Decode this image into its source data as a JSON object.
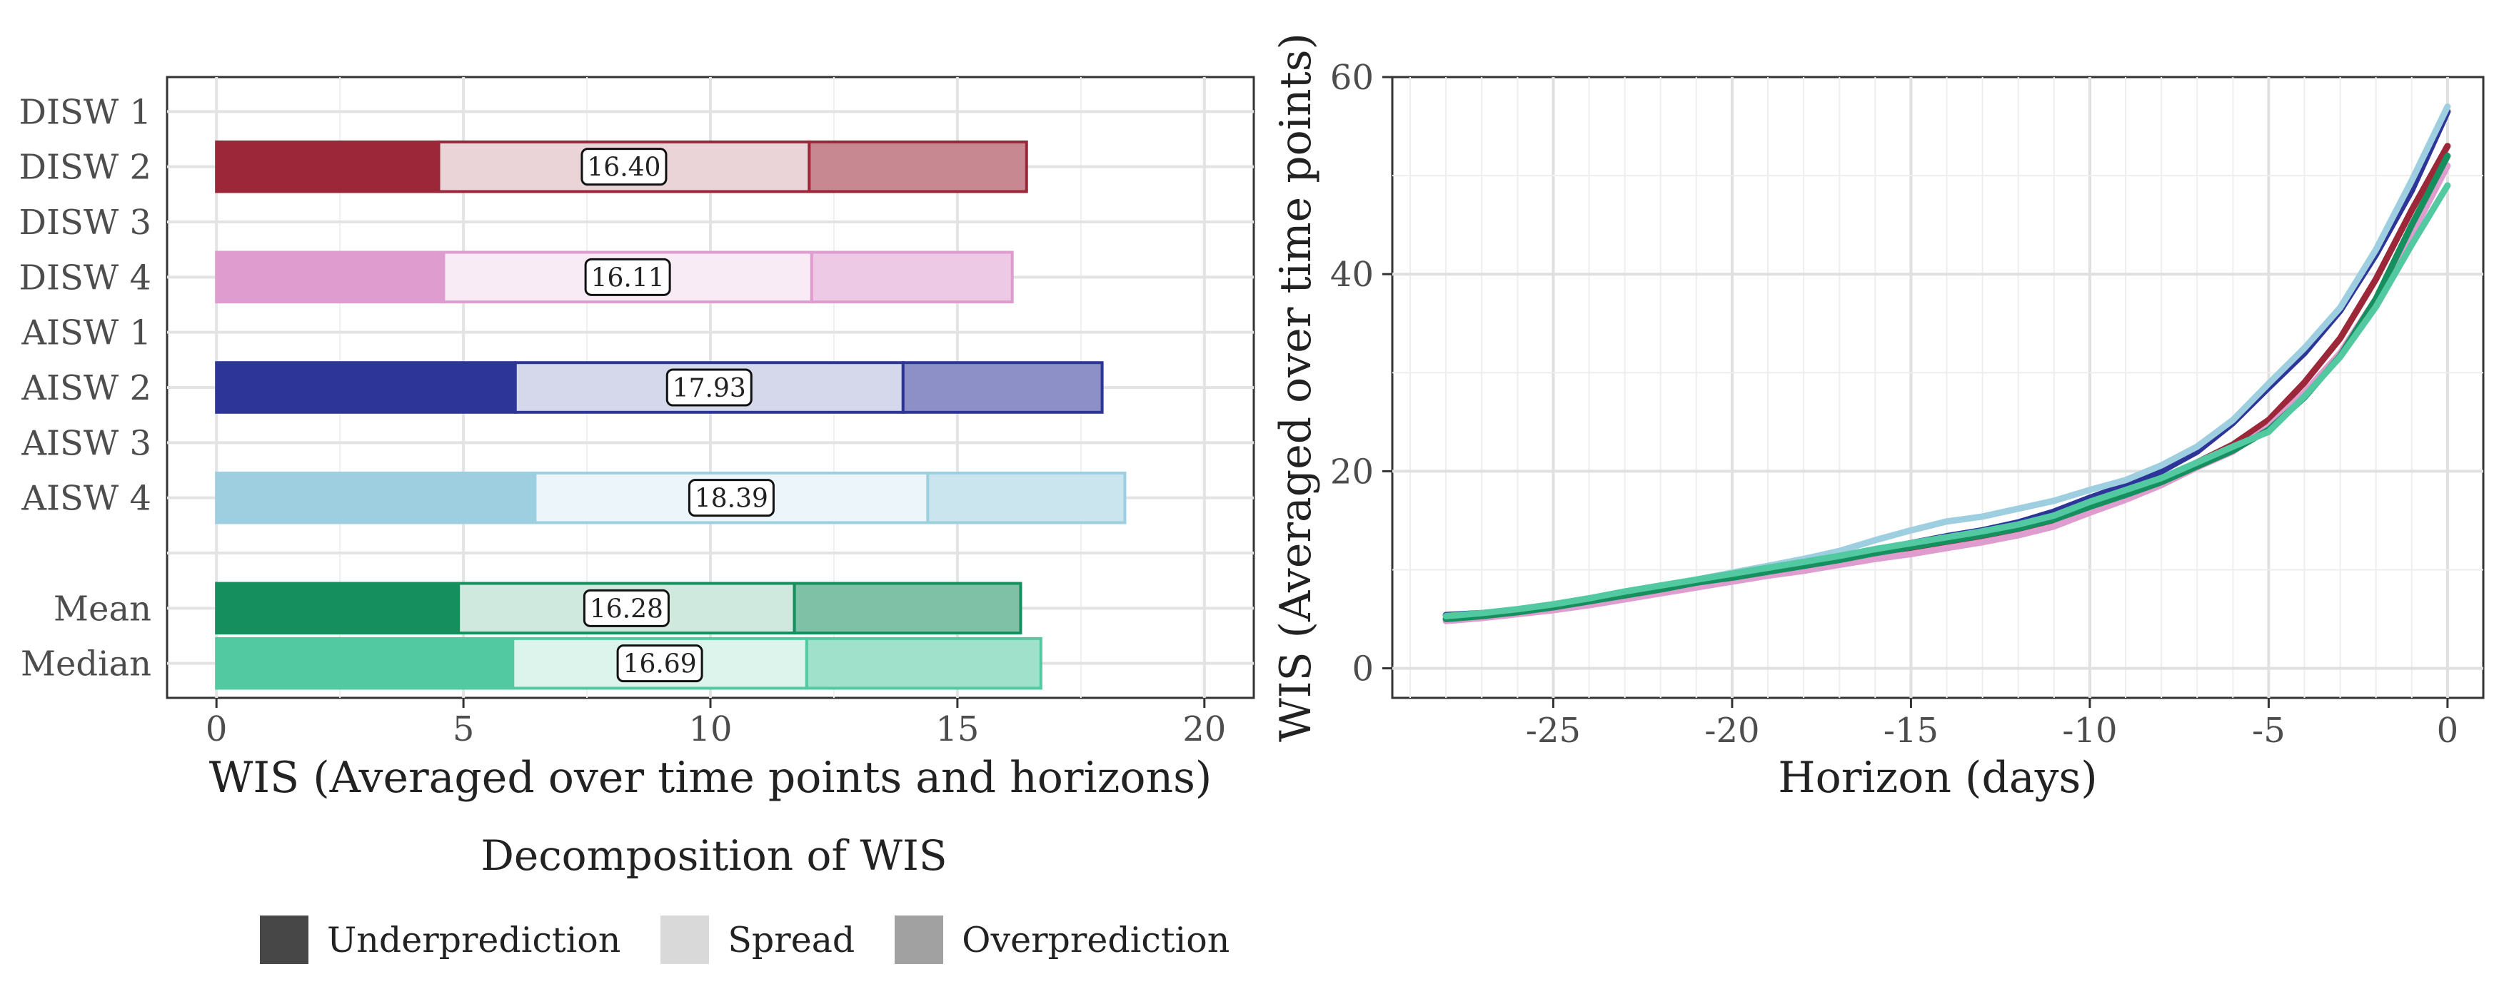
{
  "chart_data": [
    {
      "type": "bar",
      "orientation": "horizontal",
      "stacked": true,
      "xlabel": "WIS (Averaged over time points and horizons)",
      "ylabel": "",
      "xlim": [
        -1,
        21
      ],
      "xticks": [
        0,
        5,
        10,
        15,
        20
      ],
      "grid": true,
      "categories": [
        "DISW 1",
        "DISW 2",
        "DISW 3",
        "DISW 4",
        "AISW 1",
        "AISW 2",
        "AISW 3",
        "AISW 4",
        "",
        "Mean",
        "Median"
      ],
      "series": [
        {
          "name": "Underprediction",
          "values": [
            null,
            4.5,
            null,
            4.6,
            null,
            6.05,
            null,
            6.45,
            null,
            4.9,
            6.0
          ]
        },
        {
          "name": "Spread",
          "values": [
            null,
            7.5,
            null,
            7.45,
            null,
            7.85,
            null,
            7.95,
            null,
            6.8,
            5.95
          ]
        },
        {
          "name": "Overprediction",
          "values": [
            null,
            4.4,
            null,
            4.06,
            null,
            4.03,
            null,
            3.99,
            null,
            4.58,
            4.74
          ]
        }
      ],
      "totals": [
        null,
        16.4,
        null,
        16.11,
        null,
        17.93,
        null,
        18.39,
        null,
        16.28,
        16.69
      ],
      "total_labels": [
        "",
        "16.40",
        "",
        "16.11",
        "",
        "17.93",
        "",
        "18.39",
        "",
        "16.28",
        "16.69"
      ],
      "bar_colors": [
        "",
        "#9b2738",
        "",
        "#de9ccf",
        "",
        "#2d3599",
        "",
        "#9ecfe0",
        "",
        "#168f5e",
        "#52c9a1"
      ],
      "legend": {
        "title": "Decomposition of WIS",
        "placement": "bottom",
        "items": [
          {
            "label": "Underprediction",
            "color": "#474747"
          },
          {
            "label": "Spread",
            "color": "#d9d9d9"
          },
          {
            "label": "Overprediction",
            "color": "#a1a1a1"
          }
        ]
      }
    },
    {
      "type": "line",
      "xlabel": "Horizon (days)",
      "ylabel": "WIS (Averaged over time points)",
      "xlim": [
        -29.5,
        1
      ],
      "ylim": [
        -3,
        60
      ],
      "xticks": [
        -25,
        -20,
        -15,
        -10,
        -5,
        0
      ],
      "xtick_labels": [
        "-25",
        "-20",
        "-15",
        "-10",
        "-5",
        "0"
      ],
      "yticks": [
        0,
        20,
        40,
        60
      ],
      "grid": true,
      "x": [
        -28,
        -27,
        -26,
        -25,
        -24,
        -23,
        -22,
        -21,
        -20,
        -19,
        -18,
        -17,
        -16,
        -15,
        -14,
        -13,
        -12,
        -11,
        -10,
        -9,
        -8,
        -7,
        -6,
        -5,
        -4,
        -3,
        -2,
        -1,
        0
      ],
      "series": [
        {
          "color": "#9b2738",
          "values": [
            5.0,
            5.3,
            5.7,
            6.1,
            6.7,
            7.3,
            7.9,
            8.5,
            9.0,
            9.6,
            10.2,
            10.8,
            11.4,
            12.0,
            12.6,
            13.2,
            13.9,
            14.9,
            16.1,
            17.4,
            18.9,
            20.9,
            22.7,
            25.2,
            29.0,
            33.5,
            39.5,
            46.5,
            53.0
          ]
        },
        {
          "color": "#de9ccf",
          "values": [
            4.8,
            5.1,
            5.5,
            5.9,
            6.4,
            7.0,
            7.6,
            8.2,
            8.8,
            9.4,
            9.9,
            10.5,
            11.1,
            11.6,
            12.2,
            12.8,
            13.5,
            14.4,
            15.8,
            17.1,
            18.6,
            20.4,
            22.0,
            24.5,
            28.0,
            32.0,
            37.5,
            44.0,
            51.0
          ]
        },
        {
          "color": "#2d3599",
          "values": [
            5.4,
            5.6,
            5.9,
            6.3,
            6.9,
            7.6,
            8.2,
            8.9,
            9.5,
            10.1,
            10.7,
            11.3,
            12.0,
            12.7,
            13.4,
            14.0,
            14.8,
            15.9,
            17.3,
            18.6,
            20.0,
            22.0,
            24.9,
            28.5,
            32.0,
            36.3,
            42.0,
            48.5,
            56.5
          ]
        },
        {
          "color": "#9ecfe0",
          "values": [
            5.1,
            5.4,
            5.8,
            6.3,
            6.9,
            7.6,
            8.3,
            9.0,
            9.7,
            10.4,
            11.1,
            11.9,
            13.0,
            14.0,
            14.9,
            15.4,
            16.2,
            17.0,
            18.1,
            19.1,
            20.6,
            22.5,
            25.2,
            28.9,
            32.5,
            36.6,
            42.5,
            49.5,
            57.0
          ]
        },
        {
          "color": "#168f5e",
          "values": [
            5.0,
            5.3,
            5.7,
            6.2,
            6.8,
            7.4,
            8.0,
            8.7,
            9.2,
            9.8,
            10.4,
            11.0,
            11.7,
            12.3,
            12.9,
            13.5,
            14.2,
            15.1,
            16.4,
            17.6,
            18.9,
            20.5,
            22.1,
            24.2,
            27.5,
            31.7,
            37.5,
            45.0,
            52.0
          ]
        },
        {
          "color": "#52c9a1",
          "values": [
            5.3,
            5.6,
            6.0,
            6.5,
            7.1,
            7.8,
            8.4,
            9.0,
            9.6,
            10.2,
            10.8,
            11.4,
            12.1,
            12.7,
            13.3,
            13.9,
            14.6,
            15.5,
            16.9,
            18.1,
            19.3,
            20.9,
            22.5,
            24.0,
            27.6,
            31.6,
            36.7,
            43.0,
            49.0
          ]
        }
      ]
    }
  ]
}
